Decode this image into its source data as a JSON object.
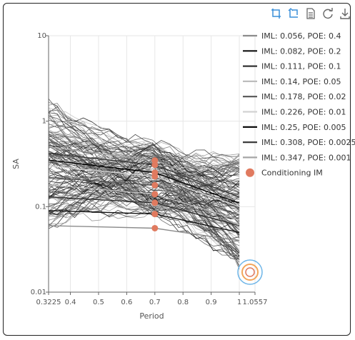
{
  "toolbox": {
    "items": [
      {
        "icon": "zoom-select-icon"
      },
      {
        "icon": "zoom-reset-icon"
      },
      {
        "icon": "data-view-icon"
      },
      {
        "icon": "restore-icon"
      },
      {
        "icon": "save-image-icon"
      }
    ],
    "color": "#3a8fd9"
  },
  "chart_data": {
    "type": "line",
    "xlabel": "Period",
    "ylabel": "SA",
    "xlim": [
      0.3225,
      1.0557
    ],
    "ylim": [
      0.01,
      10
    ],
    "y_scale": "log",
    "x_tick_labels": [
      "0.3225",
      "0.4",
      "0.5",
      "0.6",
      "0.7",
      "0.8",
      "0.9",
      "1",
      "1.0557"
    ],
    "y_tick_labels": [
      "10",
      "1",
      "0.1",
      "0.01"
    ],
    "grid": true,
    "legend_position": "right",
    "series": [
      {
        "name": "IML: 0.056, POE: 0.4",
        "color": "#8c8c8c",
        "x": [
          0.3225,
          0.7,
          1.0
        ],
        "y": [
          0.06,
          0.056,
          0.04
        ]
      },
      {
        "name": "IML: 0.082, POE: 0.2",
        "color": "#111111",
        "x": [
          0.3225,
          0.7,
          1.0
        ],
        "y": [
          0.09,
          0.082,
          0.05
        ]
      },
      {
        "name": "IML: 0.111, POE: 0.1",
        "color": "#333333",
        "x": [
          0.3225,
          0.7,
          1.0
        ],
        "y": [
          0.13,
          0.111,
          0.06
        ]
      },
      {
        "name": "IML: 0.14, POE: 0.05",
        "color": "#bdbdbd",
        "x": [
          0.3225,
          0.7,
          1.0
        ],
        "y": [
          0.18,
          0.14,
          0.07
        ]
      },
      {
        "name": "IML: 0.178, POE: 0.02",
        "color": "#555555",
        "x": [
          0.3225,
          0.7,
          1.0
        ],
        "y": [
          0.22,
          0.178,
          0.08
        ]
      },
      {
        "name": "IML: 0.226, POE: 0.01",
        "color": "#d2d2d2",
        "x": [
          0.3225,
          0.7,
          1.0
        ],
        "y": [
          0.3,
          0.226,
          0.1
        ]
      },
      {
        "name": "IML: 0.25, POE: 0.005",
        "color": "#000000",
        "x": [
          0.3225,
          0.7,
          1.0
        ],
        "y": [
          0.35,
          0.25,
          0.11
        ]
      },
      {
        "name": "IML: 0.308, POE: 0.0025",
        "color": "#3c3c3c",
        "x": [
          0.3225,
          0.7,
          1.0
        ],
        "y": [
          0.42,
          0.308,
          0.13
        ]
      },
      {
        "name": "IML: 0.347, POE: 0.001",
        "color": "#a5a5a5",
        "x": [
          0.3225,
          0.7,
          1.0
        ],
        "y": [
          0.5,
          0.347,
          0.15
        ]
      }
    ],
    "conditioning": {
      "name": "Conditioning IM",
      "color": "#e07a5f",
      "x": 0.7,
      "values": [
        0.056,
        0.082,
        0.111,
        0.14,
        0.178,
        0.226,
        0.25,
        0.308,
        0.347
      ]
    }
  }
}
